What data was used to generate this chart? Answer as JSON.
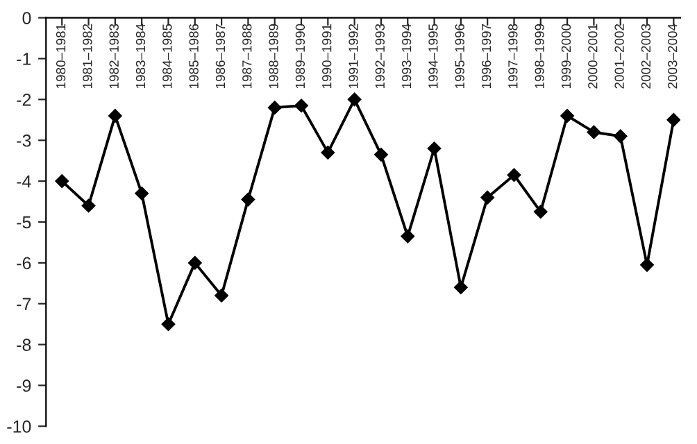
{
  "chart_data": {
    "type": "line",
    "categories": [
      "1980–1981",
      "1981–1982",
      "1982–1983",
      "1983–1984",
      "1984–1985",
      "1985–1986",
      "1986–1987",
      "1987–1988",
      "1988–1989",
      "1989–1990",
      "1990–1991",
      "1991–1992",
      "1992–1993",
      "1993–1994",
      "1994–1995",
      "1995–1996",
      "1996–1997",
      "1997–1998",
      "1998–1999",
      "1999–2000",
      "2000–2001",
      "2001–2002",
      "2002–2003",
      "2003–2004"
    ],
    "series": [
      {
        "color": "#000000",
        "values": [
          -4.0,
          -4.6,
          -2.4,
          -4.3,
          -7.5,
          -6.0,
          -6.8,
          -4.45,
          -2.2,
          -2.15,
          -3.3,
          -2.0,
          -3.35,
          -5.35,
          -3.2,
          -6.6,
          -4.4,
          -3.85,
          -4.75,
          -2.4,
          -2.8,
          -2.9,
          -6.05,
          -2.5
        ]
      }
    ],
    "ylim": [
      -10,
      0
    ],
    "yticks": [
      0,
      -1,
      -2,
      -3,
      -4,
      -5,
      -6,
      -7,
      -8,
      -9,
      -10
    ],
    "marker": "diamond",
    "line_style": "solid",
    "grid": false,
    "legend": false
  }
}
